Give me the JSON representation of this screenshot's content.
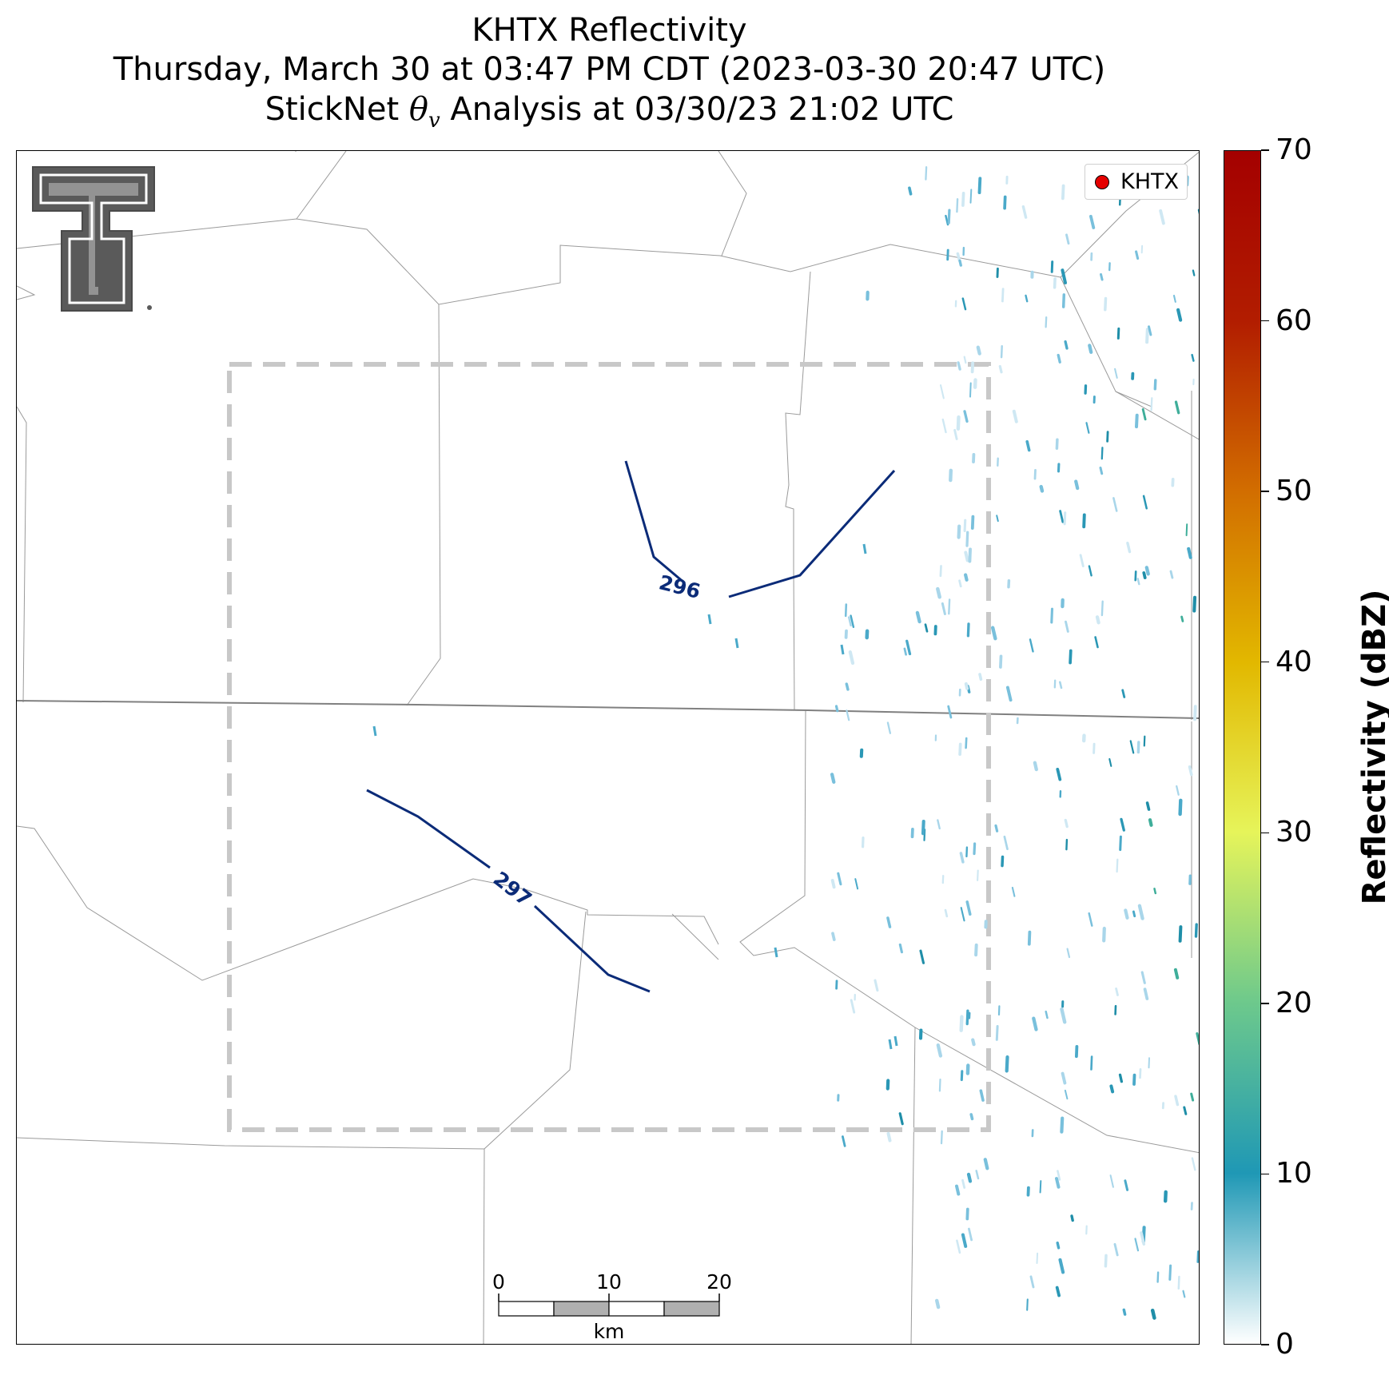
{
  "title": {
    "line1": "KHTX Reflectivity",
    "line2": "Thursday, March 30 at 03:47 PM CDT (2023-03-30 20:47 UTC)",
    "line3_prefix": "StickNet ",
    "line3_symbol": "θ",
    "line3_subscript": "v",
    "line3_suffix": " Analysis at 03/30/23 21:02 UTC"
  },
  "legend": {
    "label": "KHTX",
    "marker_color": "#e50000"
  },
  "contours": [
    {
      "label": "296",
      "color": "#0b2b78"
    },
    {
      "label": "297",
      "color": "#0b2b78"
    }
  ],
  "scale_bar": {
    "ticks": [
      "0",
      "10",
      "20"
    ],
    "unit": "km"
  },
  "colorbar": {
    "title": "Reflectivity (dBZ)",
    "min": 0,
    "max": 70,
    "ticks": [
      "0",
      "10",
      "20",
      "30",
      "40",
      "50",
      "60",
      "70"
    ],
    "colors": [
      "#ffffff",
      "#1f98b5",
      "#6dc98c",
      "#e6f45a",
      "#e2b800",
      "#d26e00",
      "#b21d00",
      "#a40000"
    ]
  },
  "analysis_domain": {
    "style": "dashed",
    "color": "#c8c8c8"
  },
  "logo": {
    "name": "Texas Tech double-T"
  }
}
